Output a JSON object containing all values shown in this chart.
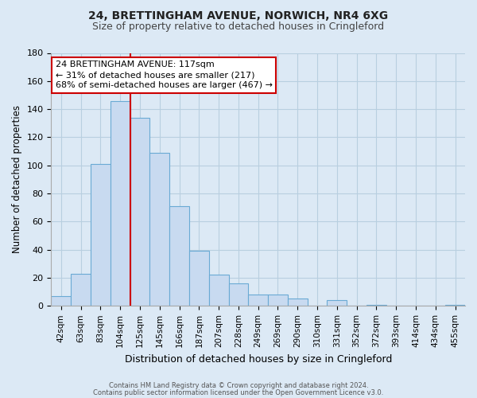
{
  "title_line1": "24, BRETTINGHAM AVENUE, NORWICH, NR4 6XG",
  "title_line2": "Size of property relative to detached houses in Cringleford",
  "xlabel": "Distribution of detached houses by size in Cringleford",
  "ylabel": "Number of detached properties",
  "footer_line1": "Contains HM Land Registry data © Crown copyright and database right 2024.",
  "footer_line2": "Contains public sector information licensed under the Open Government Licence v3.0.",
  "bar_labels": [
    "42sqm",
    "63sqm",
    "83sqm",
    "104sqm",
    "125sqm",
    "145sqm",
    "166sqm",
    "187sqm",
    "207sqm",
    "228sqm",
    "249sqm",
    "269sqm",
    "290sqm",
    "310sqm",
    "331sqm",
    "352sqm",
    "372sqm",
    "393sqm",
    "414sqm",
    "434sqm",
    "455sqm"
  ],
  "bar_values": [
    7,
    23,
    101,
    146,
    134,
    109,
    71,
    39,
    22,
    16,
    8,
    8,
    5,
    0,
    4,
    0,
    1,
    0,
    0,
    0,
    1
  ],
  "bar_color": "#c8daf0",
  "bar_edge_color": "#6aaad4",
  "vline_x": 3.5,
  "vline_color": "#cc0000",
  "annotation_text": "24 BRETTINGHAM AVENUE: 117sqm\n← 31% of detached houses are smaller (217)\n68% of semi-detached houses are larger (467) →",
  "annotation_box_color": "#ffffff",
  "annotation_box_edge": "#cc0000",
  "ylim": [
    0,
    180
  ],
  "yticks": [
    0,
    20,
    40,
    60,
    80,
    100,
    120,
    140,
    160,
    180
  ],
  "background_color": "#dce9f5",
  "plot_bg_color": "#dce9f5",
  "grid_color": "#b8cfe0",
  "title_fontsize": 10,
  "subtitle_fontsize": 9
}
